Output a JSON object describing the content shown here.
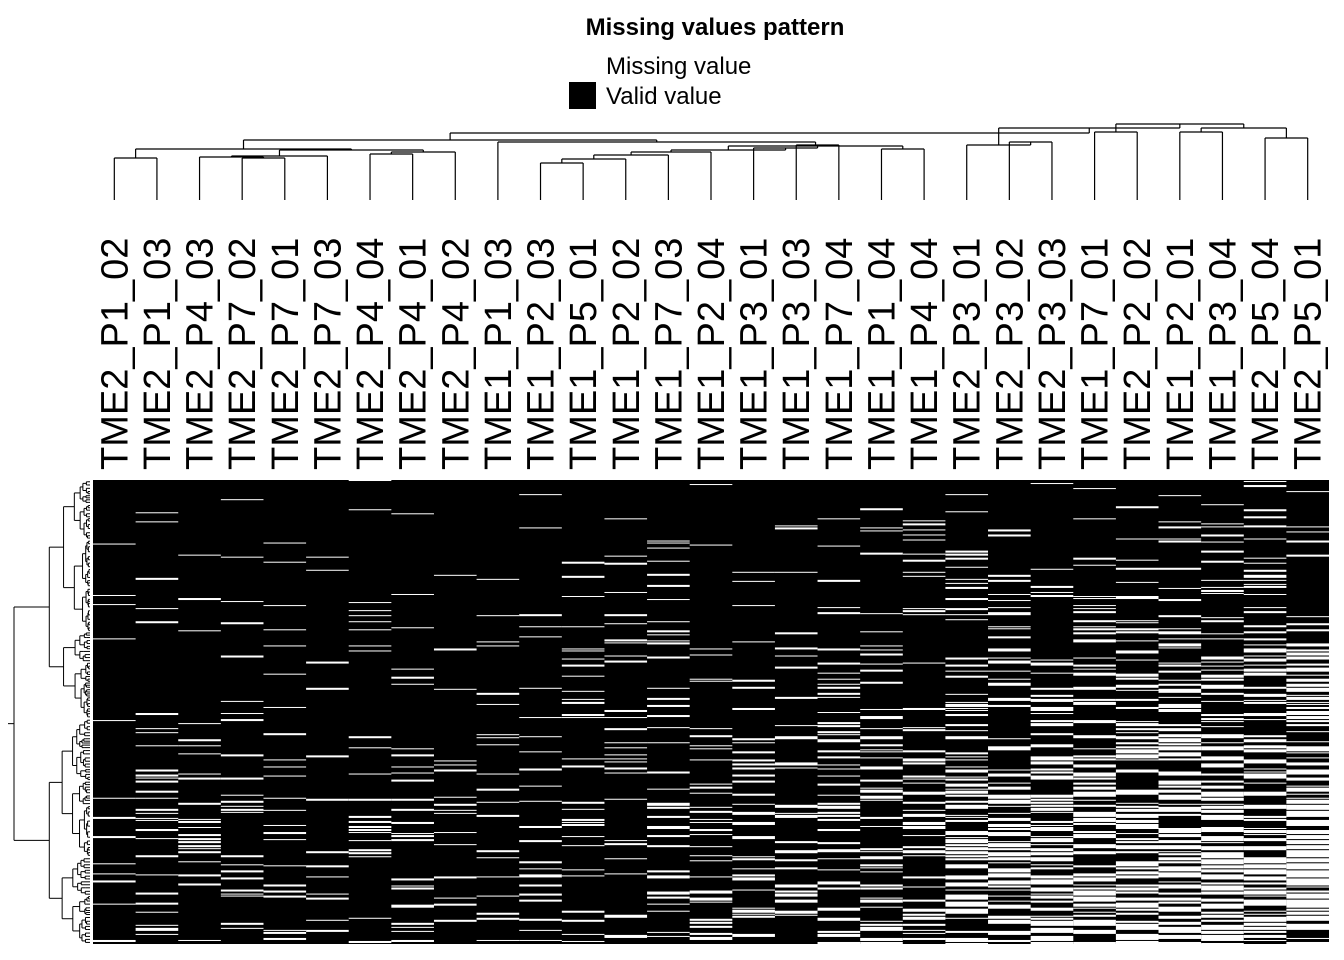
{
  "chart_data": {
    "type": "heatmap",
    "title": "Missing values pattern",
    "legend": {
      "placement": "top-center",
      "items": [
        {
          "label": "Missing value",
          "color": "#ffffff"
        },
        {
          "label": "Valid value",
          "color": "#000000"
        }
      ]
    },
    "columns": [
      "TME2_P1_02",
      "TME2_P1_03",
      "TME2_P4_03",
      "TME2_P7_02",
      "TME2_P7_01",
      "TME2_P7_03",
      "TME2_P4_04",
      "TME2_P4_01",
      "TME2_P4_02",
      "TME1_P1_03",
      "TME1_P2_03",
      "TME1_P5_01",
      "TME1_P2_02",
      "TME1_P7_03",
      "TME1_P2_04",
      "TME1_P3_01",
      "TME1_P3_03",
      "TME1_P7_04",
      "TME1_P1_04",
      "TME1_P4_04",
      "TME2_P3_01",
      "TME2_P3_02",
      "TME2_P3_03",
      "TME1_P7_01",
      "TME2_P2_02",
      "TME1_P2_01",
      "TME1_P3_04",
      "TME2_P5_04",
      "TME2_P5_01"
    ],
    "approx_missing_fraction": [
      0.05,
      0.09,
      0.08,
      0.07,
      0.08,
      0.07,
      0.07,
      0.1,
      0.06,
      0.08,
      0.09,
      0.1,
      0.12,
      0.13,
      0.12,
      0.14,
      0.15,
      0.16,
      0.16,
      0.18,
      0.27,
      0.28,
      0.31,
      0.33,
      0.34,
      0.37,
      0.4,
      0.42,
      0.45
    ],
    "row_clustering": true,
    "column_clustering": true,
    "colors": {
      "valid": "#000000",
      "missing": "#ffffff"
    }
  }
}
